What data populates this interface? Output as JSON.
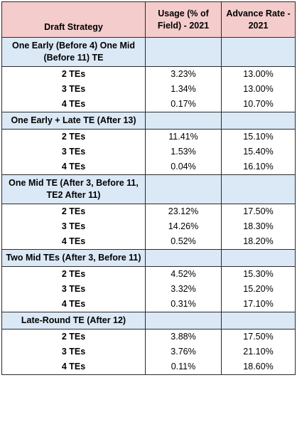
{
  "headers": {
    "strategy": "Draft Strategy",
    "usage": "Usage (% of Field) - 2021",
    "advance": "Advance Rate - 2021"
  },
  "groups": [
    {
      "title": "One Early (Before 4) One Mid (Before 11) TE",
      "rows": [
        {
          "label": "2 TEs",
          "usage": "3.23%",
          "advance": "13.00%"
        },
        {
          "label": "3 TEs",
          "usage": "1.34%",
          "advance": "13.00%"
        },
        {
          "label": "4 TEs",
          "usage": "0.17%",
          "advance": "10.70%"
        }
      ]
    },
    {
      "title": "One Early + Late TE (After 13)",
      "rows": [
        {
          "label": "2 TEs",
          "usage": "11.41%",
          "advance": "15.10%"
        },
        {
          "label": "3 TEs",
          "usage": "1.53%",
          "advance": "15.40%"
        },
        {
          "label": "4 TEs",
          "usage": "0.04%",
          "advance": "16.10%"
        }
      ]
    },
    {
      "title": "One Mid TE (After 3, Before 11, TE2 After 11)",
      "rows": [
        {
          "label": "2 TEs",
          "usage": "23.12%",
          "advance": "17.50%"
        },
        {
          "label": "3 TEs",
          "usage": "14.26%",
          "advance": "18.30%"
        },
        {
          "label": "4 TEs",
          "usage": "0.52%",
          "advance": "18.20%"
        }
      ]
    },
    {
      "title": "Two Mid TEs (After 3, Before 11)",
      "rows": [
        {
          "label": "2 TEs",
          "usage": "4.52%",
          "advance": "15.30%"
        },
        {
          "label": "3 TEs",
          "usage": "3.32%",
          "advance": "15.20%"
        },
        {
          "label": "4 TEs",
          "usage": "0.31%",
          "advance": "17.10%"
        }
      ]
    },
    {
      "title": "Late-Round TE (After 12)",
      "rows": [
        {
          "label": "2 TEs",
          "usage": "3.88%",
          "advance": "17.50%"
        },
        {
          "label": "3 TEs",
          "usage": "3.76%",
          "advance": "21.10%"
        },
        {
          "label": "4 TEs",
          "usage": "0.11%",
          "advance": "18.60%"
        }
      ]
    }
  ]
}
